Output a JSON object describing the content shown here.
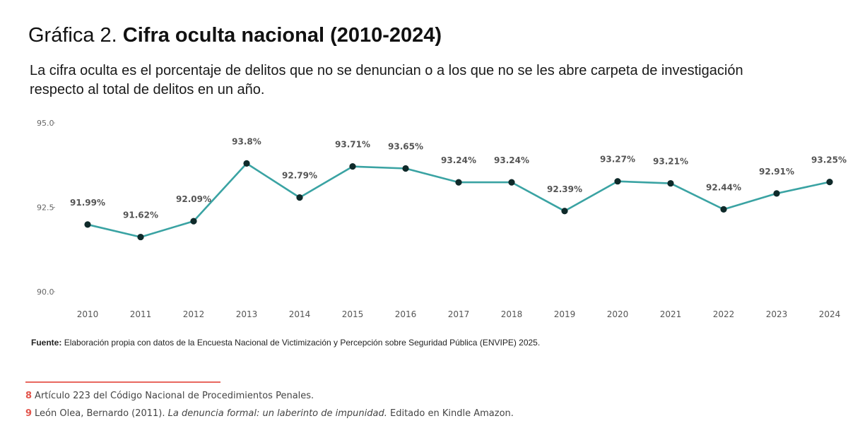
{
  "header": {
    "title_prefix": "Gráfica 2.",
    "title_main": "Cifra oculta nacional (2010-2024)",
    "subtitle": "La cifra oculta es el porcentaje de delitos que no se denuncian o a los que no se les abre carpeta de investigación respecto al total de delitos en un año."
  },
  "chart_data": {
    "type": "line",
    "title": "Cifra oculta nacional (2010-2024)",
    "xlabel": "",
    "ylabel": "",
    "x": [
      "2010",
      "2011",
      "2012",
      "2013",
      "2014",
      "2015",
      "2016",
      "2017",
      "2018",
      "2019",
      "2020",
      "2021",
      "2022",
      "2023",
      "2024"
    ],
    "values": [
      91.99,
      91.62,
      92.09,
      93.8,
      92.79,
      93.71,
      93.65,
      93.24,
      93.24,
      92.39,
      93.27,
      93.21,
      92.44,
      92.91,
      93.25
    ],
    "data_labels": [
      "91.99%",
      "91.62%",
      "92.09%",
      "93.8%",
      "92.79%",
      "93.71%",
      "93.65%",
      "93.24%",
      "93.24%",
      "92.39%",
      "93.27%",
      "93.21%",
      "92.44%",
      "92.91%",
      "93.25%"
    ],
    "y_ticks": [
      "90.0",
      "92.5",
      "95.0"
    ],
    "y_tick_values": [
      90.0,
      92.5,
      95.0
    ],
    "ylim": [
      90.0,
      95.0
    ],
    "line_color": "#3aa3a3",
    "marker_color": "#0f2a2a",
    "grid": false,
    "legend": "none"
  },
  "footer": {
    "source_label": "Fuente:",
    "source_text": "Elaboración propia con datos de la Encuesta Nacional de Victimización y Percepción sobre Seguridad Pública (ENVIPE) 2025.",
    "accent_color": "#e8685f",
    "notes": [
      {
        "num": "8",
        "text": "Artículo 223 del Código Nacional de Procedimientos Penales.",
        "italic": "",
        "tail": ""
      },
      {
        "num": "9",
        "text": "León Olea, Bernardo (2011). ",
        "italic": "La denuncia formal: un laberinto de impunidad.",
        "tail": " Editado en Kindle Amazon."
      }
    ]
  }
}
